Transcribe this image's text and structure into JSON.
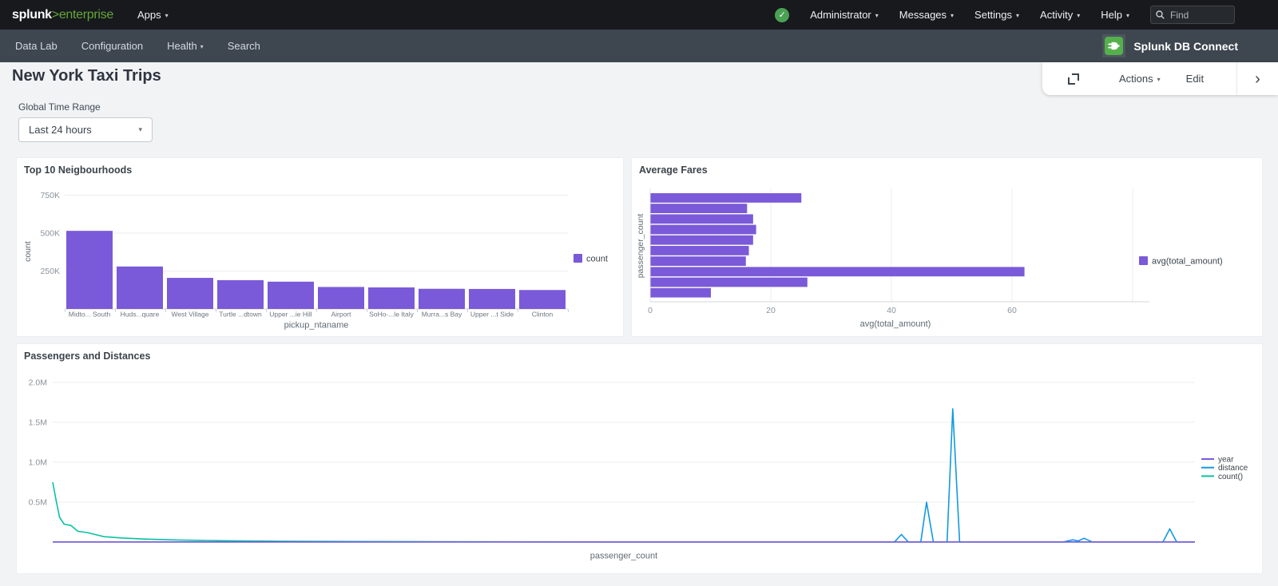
{
  "topnav": {
    "logo": {
      "brand": "splunk",
      "gt": ">",
      "product": "enterprise"
    },
    "apps_label": "Apps",
    "right_menus": [
      {
        "label": "Administrator"
      },
      {
        "label": "Messages"
      },
      {
        "label": "Settings"
      },
      {
        "label": "Activity"
      },
      {
        "label": "Help"
      }
    ],
    "find_placeholder": "Find"
  },
  "appnav": {
    "items": [
      {
        "label": "Data Lab"
      },
      {
        "label": "Configuration"
      },
      {
        "label": "Health"
      },
      {
        "label": "Search"
      }
    ],
    "app_name": "Splunk DB Connect"
  },
  "header": {
    "title": "New York Taxi Trips",
    "actions_label": "Actions",
    "edit_label": "Edit"
  },
  "filters": {
    "label": "Global Time Range",
    "value": "Last 24 hours"
  },
  "icons": {
    "caret_down": "▾",
    "chevron_right": "›",
    "check": "✓"
  },
  "colors": {
    "accent_purple": "#7a5ad8",
    "accent_blue": "#1099e3",
    "accent_teal": "#06c3a2",
    "brand_green": "#65a637",
    "navbar_dark": "#17191d",
    "appbar_slate": "#3e4650"
  },
  "chart_data": [
    {
      "type": "bar",
      "title": "Top 10 Neigbourhoods",
      "xlabel": "pickup_ntaname",
      "ylabel": "count",
      "legend": [
        {
          "label": "count",
          "color": "#7a5ad8"
        }
      ],
      "categories": [
        "Midto... South",
        "Huds...quare",
        "West Village",
        "Turtle ...dtown",
        "Upper ...ie Hill",
        "Airport",
        "SoHo-...le Italy",
        "Murra...s Bay",
        "Upper ...t Side",
        "Clinton"
      ],
      "values": [
        515000,
        280000,
        205000,
        190000,
        180000,
        145000,
        142000,
        133000,
        132000,
        125000
      ],
      "yticks": [
        {
          "label": "250K",
          "value": 250000
        },
        {
          "label": "500K",
          "value": 500000
        },
        {
          "label": "750K",
          "value": 750000
        }
      ],
      "ylim": [
        0,
        790000
      ],
      "grid": "horizontal",
      "legend_position": "right"
    },
    {
      "type": "hbar",
      "title": "Average Fares",
      "xlabel": "avg(total_amount)",
      "ylabel": "passenger_count",
      "legend": [
        {
          "label": "avg(total_amount)",
          "color": "#7a5ad8"
        }
      ],
      "values": [
        25,
        16,
        17,
        17.5,
        17,
        16.3,
        15.8,
        62,
        26,
        10
      ],
      "xticks": [
        {
          "label": "0",
          "value": 0
        },
        {
          "label": "20",
          "value": 20
        },
        {
          "label": "40",
          "value": 40
        },
        {
          "label": "60",
          "value": 60
        }
      ],
      "gridlines": [
        20,
        40,
        60,
        80
      ],
      "xlim": [
        0,
        84
      ],
      "grid": "vertical",
      "legend_position": "right"
    },
    {
      "type": "line",
      "title": "Passengers and Distances",
      "xlabel": "passenger_count",
      "ylabel": "",
      "yticks": [
        {
          "label": "0.5M",
          "value": 500000
        },
        {
          "label": "1.0M",
          "value": 1000000
        },
        {
          "label": "1.5M",
          "value": 1500000
        },
        {
          "label": "2.0M",
          "value": 2000000
        }
      ],
      "ylim": [
        0,
        2050000
      ],
      "grid": "horizontal",
      "legend_position": "right",
      "series": [
        {
          "name": "year",
          "color": "#7a5ad8",
          "points": [
            [
              0,
              2016
            ],
            [
              1,
              2016
            ]
          ]
        },
        {
          "name": "distance",
          "color": "#1099e3",
          "points": [
            [
              0,
              2000
            ],
            [
              0.72,
              2000
            ],
            [
              0.737,
              2000
            ],
            [
              0.743,
              95000
            ],
            [
              0.749,
              2000
            ],
            [
              0.76,
              2000
            ],
            [
              0.765,
              500000
            ],
            [
              0.771,
              2000
            ],
            [
              0.783,
              2000
            ],
            [
              0.788,
              1670000
            ],
            [
              0.794,
              2000
            ],
            [
              0.885,
              2000
            ],
            [
              0.893,
              28000
            ],
            [
              0.898,
              15000
            ],
            [
              0.903,
              48000
            ],
            [
              0.91,
              2000
            ],
            [
              0.972,
              2000
            ],
            [
              0.978,
              165000
            ],
            [
              0.984,
              2000
            ],
            [
              1,
              2000
            ]
          ]
        },
        {
          "name": "count()",
          "color": "#06c3a2",
          "points": [
            [
              0,
              750000
            ],
            [
              0.003,
              520000
            ],
            [
              0.006,
              310000
            ],
            [
              0.01,
              225000
            ],
            [
              0.016,
              208000
            ],
            [
              0.022,
              135000
            ],
            [
              0.03,
              120000
            ],
            [
              0.045,
              68000
            ],
            [
              0.06,
              52000
            ],
            [
              0.08,
              38000
            ],
            [
              0.11,
              26000
            ],
            [
              0.15,
              17000
            ],
            [
              0.2,
              11000
            ],
            [
              0.27,
              7000
            ],
            [
              0.35,
              4000
            ],
            [
              0.5,
              2500
            ],
            [
              0.7,
              2000
            ],
            [
              1,
              2000
            ]
          ]
        }
      ]
    }
  ]
}
